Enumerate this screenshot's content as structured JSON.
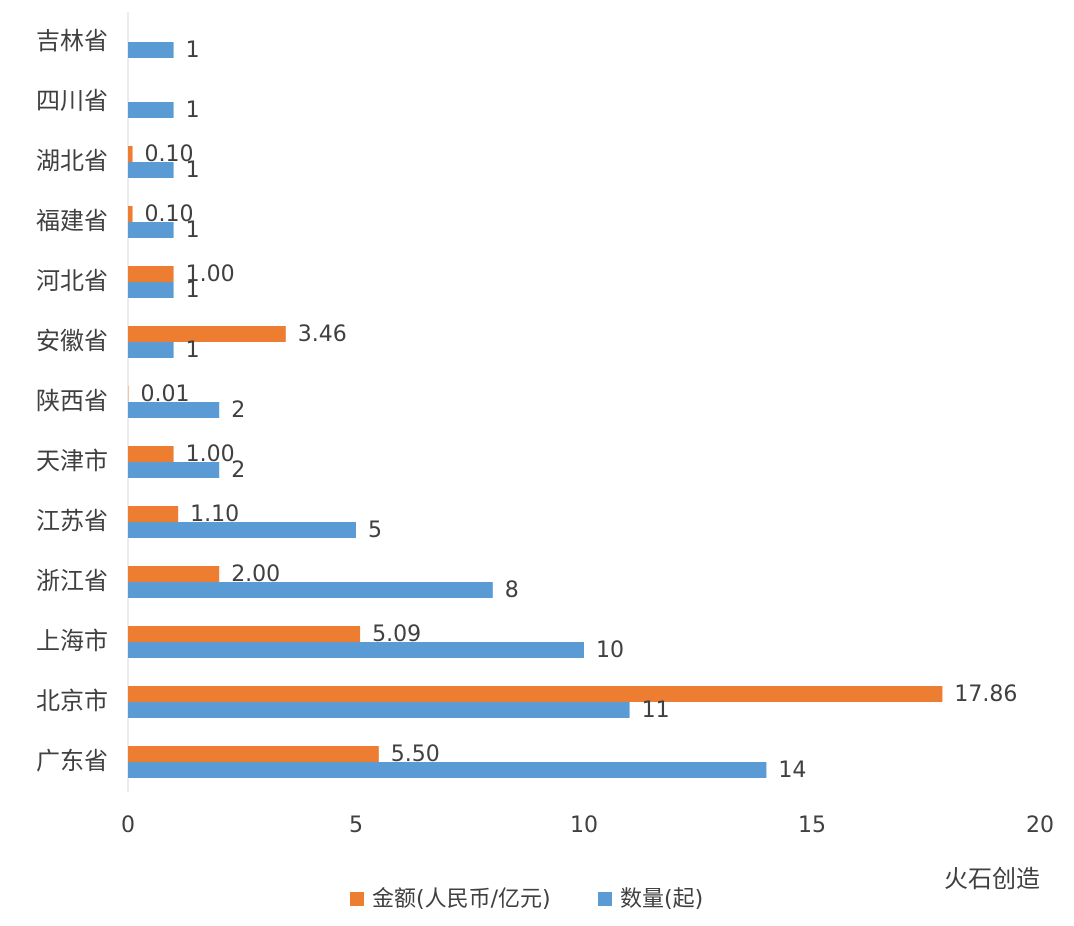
{
  "chart_data": {
    "type": "hbar",
    "categories": [
      "吉林省",
      "四川省",
      "湖北省",
      "福建省",
      "河北省",
      "安徽省",
      "陕西省",
      "天津市",
      "江苏省",
      "浙江省",
      "上海市",
      "北京市",
      "广东省"
    ],
    "series": [
      {
        "name": "金额(人民币/亿元)",
        "color": "#ed7d31",
        "values": [
          null,
          null,
          0.1,
          0.1,
          1,
          3.46,
          0.01,
          1,
          1.1,
          2,
          5.09,
          17.86,
          5.5
        ],
        "value_labels": [
          null,
          null,
          "0.10",
          "0.10",
          "1.00",
          "3.46",
          "0.01",
          "1.00",
          "1.10",
          "2.00",
          "5.09",
          "17.86",
          "5.50"
        ]
      },
      {
        "name": "数量(起)",
        "color": "#5b9bd5",
        "values": [
          1,
          1,
          1,
          1,
          1,
          1,
          2,
          2,
          5,
          8,
          10,
          11,
          14
        ]
      }
    ],
    "xlim": [
      0,
      20
    ],
    "xticks": [
      0,
      5,
      10,
      15,
      20
    ],
    "legend": "bottom",
    "watermark": "火石创造"
  }
}
